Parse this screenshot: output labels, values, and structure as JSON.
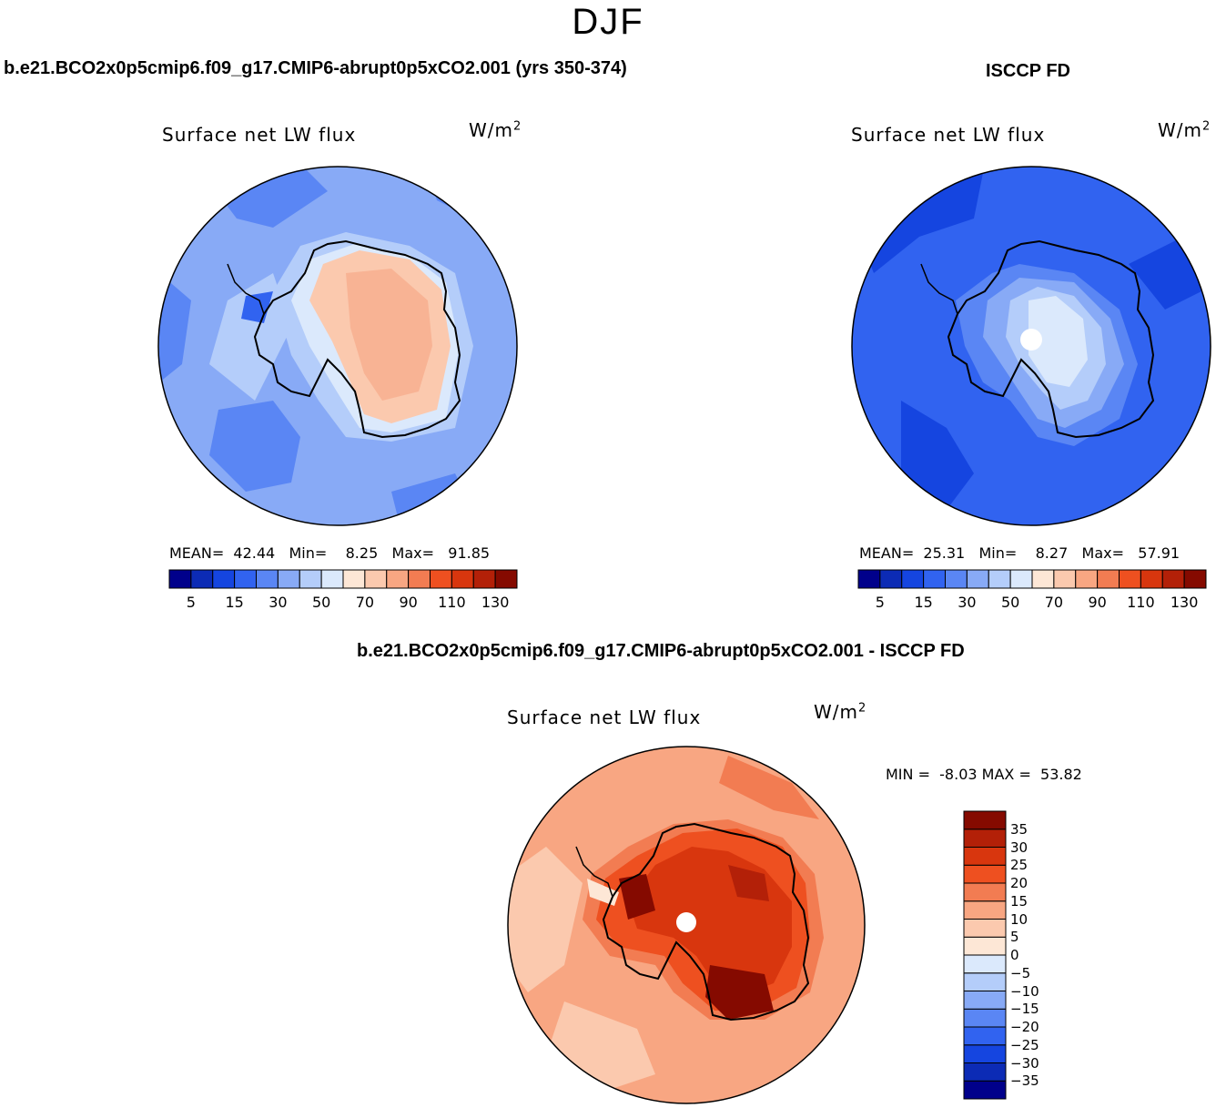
{
  "season": "DJF",
  "panels": {
    "model": {
      "case_title": "b.e21.BCO2x0p5cmip6.f09_g17.CMIP6-abrupt0p5xCO2.001 (yrs 350-374)",
      "plot_title": "Surface net LW flux",
      "units": "W/m",
      "units_exp": "2",
      "stats": {
        "mean_label": "MEAN=",
        "mean": "42.44",
        "min_label": "Min=",
        "min": "8.25",
        "max_label": "Max=",
        "max": "91.85"
      }
    },
    "obs": {
      "case_title": "ISCCP FD",
      "plot_title": "Surface net LW flux",
      "units": "W/m",
      "units_exp": "2",
      "stats": {
        "mean_label": "MEAN=",
        "mean": "25.31",
        "min_label": "Min=",
        "min": "8.27",
        "max_label": "Max=",
        "max": "57.91"
      }
    },
    "diff": {
      "case_title": "b.e21.BCO2x0p5cmip6.f09_g17.CMIP6-abrupt0p5xCO2.001 - ISCCP FD",
      "plot_title": "Surface net LW flux",
      "units": "W/m",
      "units_exp": "2",
      "stats": {
        "min_label": "MIN =",
        "min": "-8.03",
        "max_label": "MAX =",
        "max": "53.82"
      }
    }
  },
  "colorbars": {
    "absolute": {
      "colors": [
        "#00008b",
        "#0c2bb5",
        "#1545e0",
        "#3163f0",
        "#5a86f4",
        "#88aaf6",
        "#b4cdfa",
        "#dbe9fc",
        "#fde7d6",
        "#fbc9ae",
        "#f8a682",
        "#f27c52",
        "#ee5020",
        "#d8360e",
        "#b32008",
        "#850a00"
      ],
      "tick_labels": [
        "5",
        "15",
        "30",
        "50",
        "70",
        "90",
        "110",
        "130"
      ]
    },
    "difference": {
      "colors": [
        "#00008b",
        "#0c2bb5",
        "#1545e0",
        "#3163f0",
        "#5a86f4",
        "#88aaf6",
        "#b4cdfa",
        "#dbe9fc",
        "#fde7d6",
        "#fbc9ae",
        "#f8a682",
        "#f27c52",
        "#ee5020",
        "#d8360e",
        "#b32008",
        "#850a00"
      ],
      "tick_labels": [
        "35",
        "30",
        "25",
        "20",
        "15",
        "10",
        "5",
        "0",
        "−5",
        "−10",
        "−15",
        "−20",
        "−25",
        "−30",
        "−35"
      ]
    }
  }
}
